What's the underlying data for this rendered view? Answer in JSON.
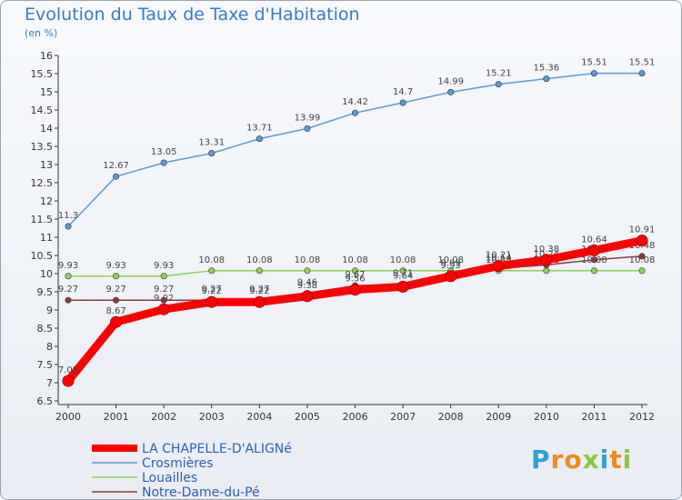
{
  "header": {
    "title": "Evolution du Taux de Taxe d'Habitation",
    "subtitle": "(en %)"
  },
  "brand": {
    "logo_letters": [
      "P",
      "r",
      "o",
      "x",
      "i",
      "t",
      "i"
    ],
    "logo_colors": [
      "#2f9fd8",
      "#ef8a1f",
      "#ef8a1f",
      "#8cc63f",
      "#2f9fd8",
      "#ef8a1f",
      "#8cc63f"
    ]
  },
  "chart_data": {
    "type": "line",
    "title": "Evolution du Taux de Taxe d'Habitation",
    "subtitle": "(en %)",
    "xlabel": "",
    "ylabel": "",
    "x": [
      "2000",
      "2001",
      "2002",
      "2003",
      "2004",
      "2005",
      "2006",
      "2007",
      "2008",
      "2009",
      "2010",
      "2011",
      "2012"
    ],
    "ylim": [
      6.5,
      16
    ],
    "yticks": [
      "6.5",
      "7",
      "7.5",
      "8",
      "8.5",
      "9",
      "9.5",
      "10",
      "10.5",
      "11",
      "11.5",
      "12",
      "12.5",
      "13",
      "13.5",
      "14",
      "14.5",
      "15",
      "15.5",
      "16"
    ],
    "grid": false,
    "legend_position": "bottom-left",
    "series": [
      {
        "name": "Crosmières",
        "color": "#5c9bd1",
        "values": [
          11.3,
          12.67,
          13.05,
          13.31,
          13.71,
          13.99,
          14.42,
          14.7,
          14.99,
          15.21,
          15.36,
          15.51,
          15.51
        ],
        "labels": [
          "11.3",
          "12.67",
          "13.05",
          "13.31",
          "13.71",
          "13.99",
          "14.42",
          "14.7",
          "14.99",
          "15.21",
          "15.36",
          "15.51",
          "15.51"
        ]
      },
      {
        "name": "Louailles",
        "color": "#8fd15a",
        "values": [
          9.93,
          9.93,
          9.93,
          10.08,
          10.08,
          10.08,
          10.08,
          10.08,
          10.08,
          10.08,
          10.08,
          10.08,
          10.08
        ],
        "labels": [
          "9.93",
          "9.93",
          "9.93",
          "10.08",
          "10.08",
          "10.08",
          "10.08",
          "10.08",
          "10.08",
          "10.08",
          "10.08",
          "10.08",
          "10.08"
        ]
      },
      {
        "name": "Notre-Dame-du-Pé",
        "color": "#8b3a3a",
        "values": [
          9.27,
          9.27,
          9.27,
          9.27,
          9.27,
          9.46,
          9.67,
          9.71,
          9.99,
          10.14,
          10.24,
          10.38,
          10.48
        ],
        "labels": [
          "9.27",
          "9.27",
          "9.27",
          "9.27",
          "9.27",
          "9.46",
          "9.67",
          "9.71",
          "9.99",
          "10.14",
          "10.24",
          "10.38",
          "10.48"
        ]
      },
      {
        "name": "LA CHAPELLE-D'ALIGNé",
        "color": "#ff0000",
        "values": [
          7.05,
          8.67,
          9.02,
          9.22,
          9.22,
          9.38,
          9.56,
          9.64,
          9.93,
          10.21,
          10.38,
          10.64,
          10.91
        ],
        "labels": [
          "7.05",
          "8.67",
          "9.02",
          "9.22",
          "9.22",
          "9.38",
          "9.56",
          "9.64",
          "9.93",
          "10.21",
          "10.38",
          "10.64",
          "10.91"
        ]
      }
    ],
    "legend_order": [
      "LA CHAPELLE-D'ALIGNé",
      "Crosmières",
      "Louailles",
      "Notre-Dame-du-Pé"
    ]
  }
}
